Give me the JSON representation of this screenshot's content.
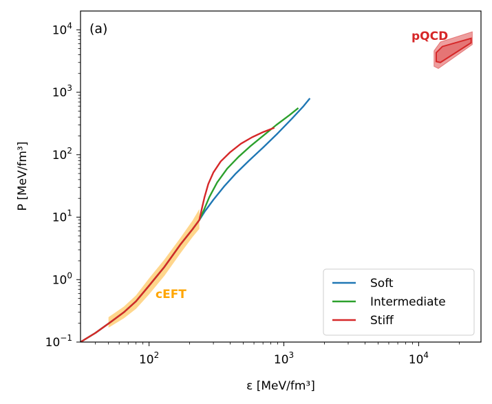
{
  "chart_data": {
    "type": "line",
    "panel_label": "(a)",
    "xlabel": "ε [MeV/fm³]",
    "ylabel": "P [MeV/fm³]",
    "xscale": "log",
    "yscale": "log",
    "xlim": [
      31,
      29000
    ],
    "ylim": [
      0.1,
      20000
    ],
    "x_ticks": [
      {
        "value": 100,
        "base": "10",
        "exp": "2"
      },
      {
        "value": 1000,
        "base": "10",
        "exp": "3"
      },
      {
        "value": 10000,
        "base": "10",
        "exp": "4"
      }
    ],
    "y_ticks": [
      {
        "value": 0.1,
        "base": "10",
        "exp": "−1"
      },
      {
        "value": 1,
        "base": "10",
        "exp": "0"
      },
      {
        "value": 10,
        "base": "10",
        "exp": "1"
      },
      {
        "value": 100,
        "base": "10",
        "exp": "2"
      },
      {
        "value": 1000,
        "base": "10",
        "exp": "3"
      },
      {
        "value": 10000,
        "base": "10",
        "exp": "4"
      }
    ],
    "grid": false,
    "legend_position": "lower-right",
    "series": [
      {
        "name": "Soft",
        "color": "#1f77b4",
        "x": [
          31,
          40,
          52,
          65,
          80,
          100,
          130,
          170,
          210,
          236,
          260,
          300,
          360,
          440,
          550,
          700,
          900,
          1150,
          1400,
          1560
        ],
        "y": [
          0.1,
          0.14,
          0.21,
          0.3,
          0.45,
          0.8,
          1.6,
          3.6,
          6.4,
          9.0,
          12.5,
          19,
          31,
          50,
          80,
          130,
          220,
          380,
          600,
          800
        ]
      },
      {
        "name": "Intermediate",
        "color": "#2ca02c",
        "x": [
          31,
          40,
          52,
          65,
          80,
          100,
          130,
          170,
          210,
          236,
          255,
          280,
          320,
          380,
          460,
          560,
          700,
          880,
          1100,
          1280
        ],
        "y": [
          0.1,
          0.14,
          0.21,
          0.3,
          0.45,
          0.8,
          1.6,
          3.6,
          6.4,
          9.0,
          13,
          21,
          36,
          60,
          92,
          135,
          200,
          300,
          430,
          560
        ]
      },
      {
        "name": "Stiff",
        "color": "#d62728",
        "x": [
          31,
          40,
          52,
          65,
          80,
          100,
          130,
          170,
          210,
          236,
          245,
          258,
          275,
          300,
          340,
          400,
          480,
          580,
          700,
          850
        ],
        "y": [
          0.1,
          0.14,
          0.21,
          0.3,
          0.45,
          0.8,
          1.6,
          3.6,
          6.4,
          9.0,
          13,
          21,
          34,
          52,
          78,
          110,
          150,
          190,
          230,
          270
        ]
      }
    ],
    "regions": [
      {
        "name": "cEFT",
        "label": "cEFT",
        "color": "#ffa500",
        "x": [
          50,
          65,
          80,
          100,
          130,
          170,
          210,
          236
        ],
        "y_low": [
          0.17,
          0.24,
          0.34,
          0.58,
          1.15,
          2.6,
          4.8,
          6.5
        ],
        "y_high": [
          0.25,
          0.37,
          0.56,
          1.05,
          2.1,
          4.6,
          8.8,
          13.5
        ]
      },
      {
        "name": "pQCD",
        "label": "pQCD",
        "color": "#d62728",
        "outer": [
          [
            13000,
            2600
          ],
          [
            13000,
            4600
          ],
          [
            14500,
            6400
          ],
          [
            25000,
            9300
          ],
          [
            25000,
            5800
          ],
          [
            14000,
            2400
          ]
        ],
        "inner": [
          [
            13500,
            3100
          ],
          [
            13500,
            4300
          ],
          [
            15000,
            5400
          ],
          [
            24500,
            7300
          ],
          [
            24500,
            6200
          ],
          [
            14500,
            3000
          ]
        ]
      }
    ]
  }
}
